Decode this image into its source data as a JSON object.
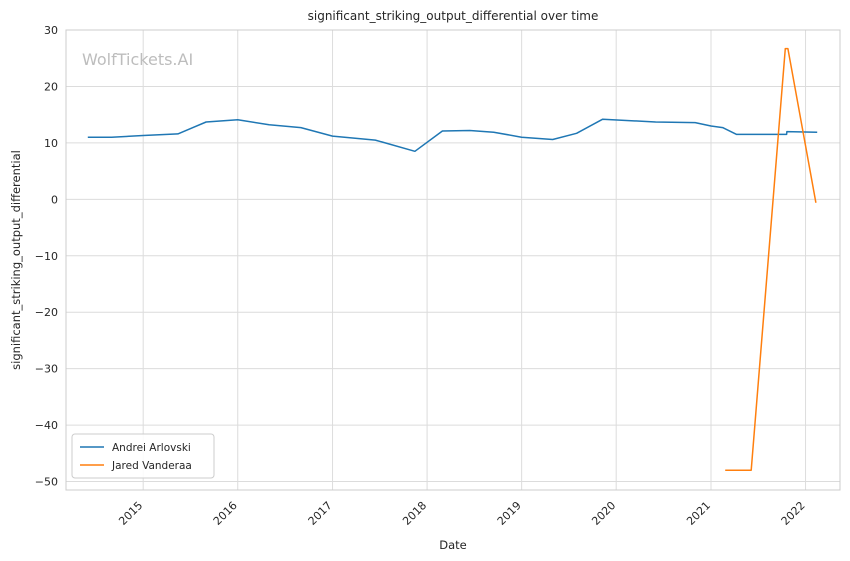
{
  "chart_data": {
    "type": "line",
    "title": "significant_striking_output_differential over time",
    "xlabel": "Date",
    "ylabel": "significant_striking_output_differential",
    "watermark": "WolfTickets.AI",
    "x_ticks": [
      "2015",
      "2016",
      "2017",
      "2018",
      "2019",
      "2020",
      "2021",
      "2022"
    ],
    "y_ticks": [
      30,
      20,
      10,
      0,
      -10,
      -20,
      -30,
      -40,
      -50
    ],
    "xlim": [
      "2014-03-09",
      "2022-05-14"
    ],
    "ylim": [
      -51.5,
      30
    ],
    "grid": true,
    "legend_position": "lower-left",
    "series": [
      {
        "name": "Andrei Arlovski",
        "color": "#1f77b4",
        "points": [
          [
            "2014-06-01",
            11.0
          ],
          [
            "2014-09-01",
            11.0
          ],
          [
            "2015-01-01",
            11.3
          ],
          [
            "2015-05-15",
            11.6
          ],
          [
            "2015-09-01",
            13.7
          ],
          [
            "2016-01-01",
            14.1
          ],
          [
            "2016-05-01",
            13.2
          ],
          [
            "2016-09-01",
            12.7
          ],
          [
            "2017-01-01",
            11.2
          ],
          [
            "2017-06-15",
            10.5
          ],
          [
            "2017-11-15",
            8.5
          ],
          [
            "2018-03-01",
            12.1
          ],
          [
            "2018-06-15",
            12.2
          ],
          [
            "2018-09-15",
            11.9
          ],
          [
            "2019-01-01",
            11.0
          ],
          [
            "2019-05-01",
            10.6
          ],
          [
            "2019-08-01",
            11.7
          ],
          [
            "2019-11-10",
            14.2
          ],
          [
            "2020-06-01",
            13.7
          ],
          [
            "2020-11-01",
            13.6
          ],
          [
            "2021-01-01",
            13.0
          ],
          [
            "2021-02-15",
            12.7
          ],
          [
            "2021-04-10",
            11.5
          ],
          [
            "2021-10-20",
            11.5
          ],
          [
            "2021-10-21",
            12.0
          ],
          [
            "2022-02-15",
            11.9
          ]
        ]
      },
      {
        "name": "Jared Vanderaa",
        "color": "#ff7f0e",
        "points": [
          [
            "2021-02-25",
            -48.0
          ],
          [
            "2021-06-05",
            -48.0
          ],
          [
            "2021-10-15",
            26.7
          ],
          [
            "2021-10-25",
            26.7
          ],
          [
            "2022-02-10",
            -0.6
          ]
        ]
      }
    ]
  }
}
